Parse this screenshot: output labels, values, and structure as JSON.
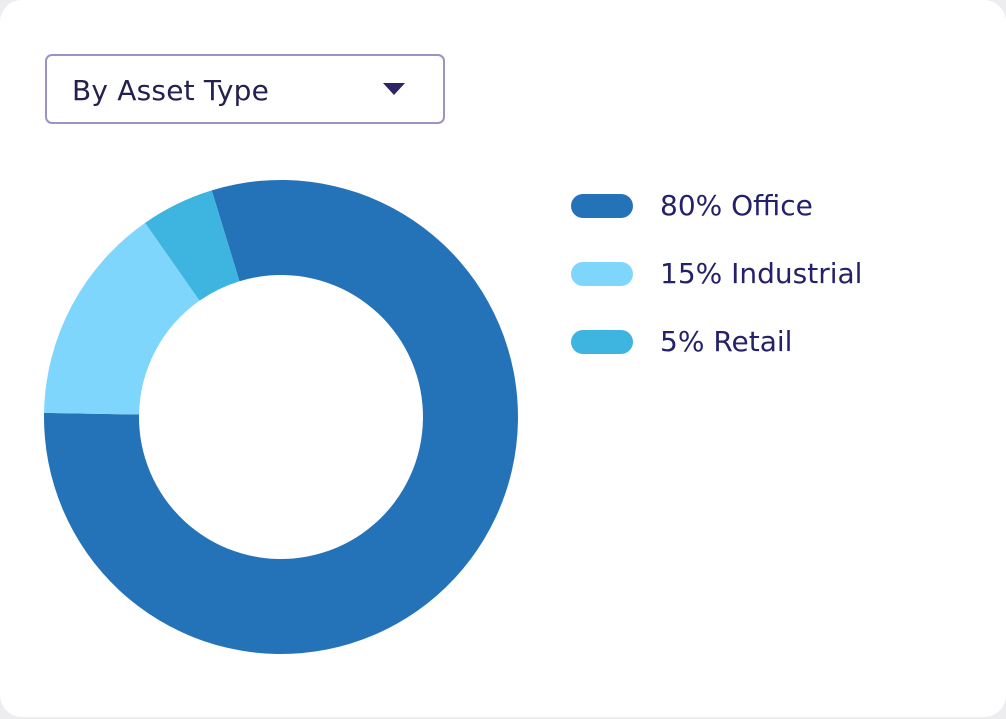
{
  "dropdown": {
    "selected": "By Asset Type",
    "icon": "chevron-down-icon"
  },
  "colors": {
    "office": "#2472b8",
    "industrial": "#7fd6fc",
    "retail": "#3db5e0",
    "text": "#24216a",
    "border": "#9a93c6"
  },
  "legend": {
    "items": [
      {
        "label": "80% Office"
      },
      {
        "label": "15% Industrial"
      },
      {
        "label": "5% Retail"
      }
    ]
  },
  "chart_data": {
    "type": "pie",
    "categories": [
      "Office",
      "Industrial",
      "Retail"
    ],
    "values": [
      80,
      15,
      5
    ],
    "donut": true
  }
}
